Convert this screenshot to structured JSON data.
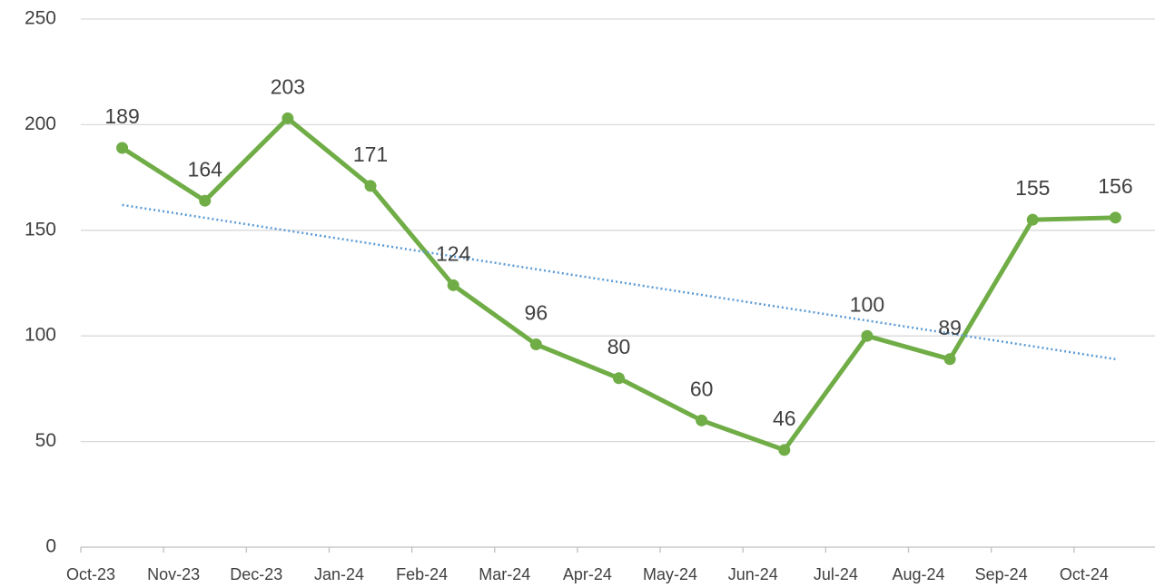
{
  "chart_data": {
    "type": "line",
    "categories": [
      "Oct-23",
      "Nov-23",
      "Dec-23",
      "Jan-24",
      "Feb-24",
      "Mar-24",
      "Apr-24",
      "May-24",
      "Jun-24",
      "Jul-24",
      "Aug-24",
      "Sep-24",
      "Oct-24"
    ],
    "series": [
      {
        "color": "#70ad47",
        "values": [
          189,
          164,
          203,
          171,
          124,
          96,
          80,
          60,
          46,
          100,
          89,
          155,
          156
        ]
      }
    ],
    "trendline": {
      "color": "#5b9bd5",
      "values": [
        162,
        89
      ]
    },
    "ylim": [
      0,
      250
    ],
    "yticks": [
      0,
      50,
      100,
      150,
      200,
      250
    ],
    "grid": true,
    "data_labels": true
  }
}
